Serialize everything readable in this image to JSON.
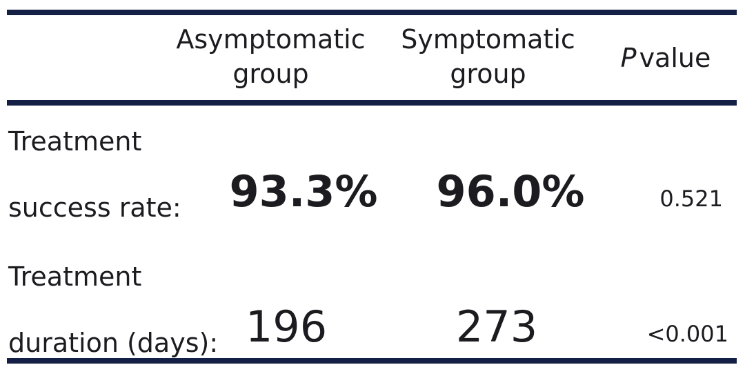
{
  "header": {
    "col_asymptomatic_line1": "Asymptomatic",
    "col_asymptomatic_line2": "group",
    "col_symptomatic_line1": "Symptomatic",
    "col_symptomatic_line2": "group",
    "col_p_italic": "P",
    "col_p_rest": "value"
  },
  "rows": [
    {
      "label_line1": "Treatment",
      "label_line2": "success rate:",
      "asymptomatic": "93.3%",
      "symptomatic": "96.0%",
      "p_value": "0.521"
    },
    {
      "label_line1": "Treatment",
      "label_line2": "duration (days):",
      "asymptomatic": "196",
      "symptomatic": "273",
      "p_value": "<0.001"
    }
  ],
  "colors": {
    "rule": "#141f45",
    "text": "#1c1c20"
  }
}
